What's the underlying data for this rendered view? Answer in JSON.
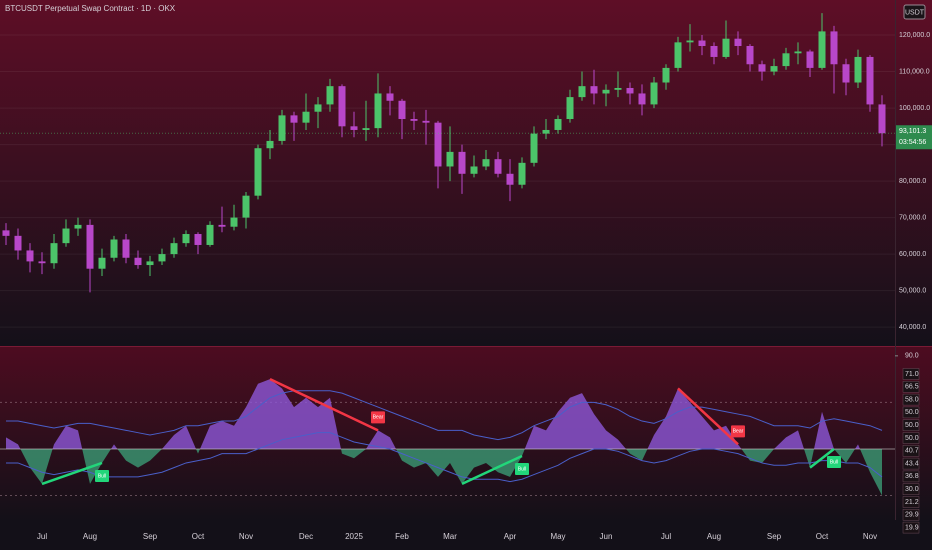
{
  "header": {
    "symbol": "BTCUSDT Perpetual Swap Contract · 1D · OKX",
    "currency": "USDT"
  },
  "chart_data": [
    {
      "type": "candlestick",
      "categories": [
        null,
        null,
        null,
        "Jul",
        null,
        null,
        null,
        "Aug",
        null,
        null,
        null,
        null,
        "Sep",
        null,
        null,
        null,
        "Oct",
        null,
        null,
        null,
        "Nov",
        null,
        null,
        null,
        null,
        "Dec",
        null,
        null,
        null,
        "2025",
        null,
        null,
        null,
        "Feb",
        null,
        null,
        null,
        "Mar",
        null,
        null,
        null,
        null,
        "Apr",
        null,
        null,
        null,
        "May",
        null,
        null,
        null,
        "Jun",
        null,
        null,
        null,
        null,
        "Jul",
        null,
        null,
        null,
        "Aug",
        null,
        null,
        null,
        null,
        "Sep",
        null,
        null,
        null,
        "Oct",
        null,
        null,
        null,
        "Nov",
        null
      ],
      "open": [
        66500,
        65000,
        61000,
        58000,
        57500,
        63000,
        67000,
        68000,
        56000,
        59000,
        64000,
        59000,
        57000,
        58000,
        60000,
        63000,
        65500,
        62500,
        68000,
        67500,
        70000,
        76000,
        89000,
        91000,
        98000,
        96000,
        99000,
        101000,
        106000,
        95000,
        94000,
        94500,
        104000,
        102000,
        97000,
        96500,
        96000,
        84000,
        88000,
        82000,
        84000,
        86000,
        82000,
        79000,
        85000,
        93000,
        94000,
        97000,
        103000,
        106000,
        104000,
        105000,
        105500,
        104000,
        101000,
        107000,
        111000,
        118000,
        118500,
        117000,
        114000,
        119000,
        117000,
        112000,
        110000,
        111500,
        115000,
        115500,
        111000,
        121000,
        112000,
        107000,
        114000,
        101000
      ],
      "high": [
        68500,
        67000,
        63000,
        60500,
        65500,
        69500,
        70000,
        69500,
        61500,
        65000,
        65500,
        61000,
        59500,
        61500,
        64500,
        66500,
        66000,
        69000,
        73000,
        73500,
        77000,
        90000,
        94000,
        99500,
        99000,
        104000,
        103000,
        108000,
        106500,
        99000,
        102000,
        109500,
        106000,
        102500,
        99000,
        99500,
        96500,
        95000,
        90000,
        87000,
        88500,
        88000,
        86000,
        86500,
        95000,
        97000,
        98000,
        105000,
        110000,
        110500,
        106500,
        110000,
        107000,
        106500,
        108500,
        112000,
        119500,
        123000,
        120000,
        118000,
        124000,
        121000,
        117500,
        113000,
        113500,
        116500,
        118000,
        116000,
        126000,
        122500,
        113500,
        116000,
        114500,
        103500
      ],
      "low": [
        62500,
        58500,
        55000,
        54500,
        56000,
        62000,
        65000,
        49500,
        54000,
        58000,
        57500,
        56000,
        54000,
        57000,
        59000,
        62000,
        60000,
        62000,
        66000,
        66500,
        67000,
        75000,
        86000,
        90000,
        91000,
        94000,
        94500,
        99000,
        92000,
        92000,
        91000,
        92000,
        98000,
        91500,
        94000,
        90000,
        78000,
        80000,
        76500,
        81000,
        83000,
        81000,
        74500,
        78000,
        84000,
        91500,
        93000,
        96000,
        102000,
        101000,
        100500,
        103000,
        101000,
        98000,
        100000,
        105000,
        110000,
        115500,
        114500,
        112000,
        113500,
        114500,
        110000,
        107500,
        109000,
        110500,
        112000,
        108500,
        110500,
        104000,
        103500,
        105500,
        99000,
        89500
      ],
      "close": [
        65000,
        61000,
        58000,
        57500,
        63000,
        67000,
        68000,
        56000,
        59000,
        64000,
        59000,
        57000,
        58000,
        60000,
        63000,
        65500,
        62500,
        68000,
        67500,
        70000,
        76000,
        89000,
        91000,
        98000,
        96000,
        99000,
        101000,
        106000,
        95000,
        94000,
        94500,
        104000,
        102000,
        97000,
        96500,
        96000,
        84000,
        88000,
        82000,
        84000,
        86000,
        82000,
        79000,
        85000,
        93000,
        94000,
        97000,
        103000,
        106000,
        104000,
        105000,
        105500,
        104000,
        101000,
        107000,
        111000,
        118000,
        118500,
        117000,
        114000,
        119000,
        117000,
        112000,
        110000,
        111500,
        115000,
        115500,
        111000,
        121000,
        112000,
        107000,
        114000,
        101000,
        93101.3
      ],
      "last_label": "93,101.3",
      "countdown": "03:54:56",
      "up_color": "#4cc46a",
      "down_color": "#b847c9",
      "ylim": [
        35100,
        129600
      ],
      "yticks": [
        {
          "value": 40000,
          "label": "40,000.0"
        },
        {
          "value": 50000,
          "label": "50,000.0"
        },
        {
          "value": 60000,
          "label": "60,000.0"
        },
        {
          "value": 70000,
          "label": "70,000.0"
        },
        {
          "value": 80000,
          "label": "80,000.0"
        },
        {
          "value": 90000,
          "label": "90,000.0"
        },
        {
          "value": 100000,
          "label": "100,000.0"
        },
        {
          "value": 110000,
          "label": "110,000.0"
        },
        {
          "value": 120000,
          "label": "120,000.0"
        }
      ],
      "grid": true
    },
    {
      "type": "oscillator",
      "values": [
        55,
        52,
        42,
        35,
        52,
        60,
        58,
        35,
        44,
        52,
        45,
        42,
        45,
        50,
        56,
        60,
        48,
        60,
        62,
        60,
        68,
        78,
        80,
        76,
        68,
        72,
        68,
        72,
        48,
        46,
        50,
        58,
        55,
        45,
        42,
        44,
        38,
        44,
        35,
        42,
        44,
        40,
        38,
        47,
        60,
        58,
        66,
        72,
        74,
        65,
        58,
        54,
        48,
        45,
        56,
        64,
        76,
        70,
        64,
        58,
        60,
        52,
        45,
        44,
        50,
        55,
        58,
        42,
        66,
        50,
        44,
        52,
        40,
        30
      ],
      "upper": [
        62,
        62,
        61,
        60,
        59,
        60,
        61,
        61,
        60,
        59,
        58,
        57,
        56,
        57,
        58,
        60,
        60,
        61,
        62,
        62,
        64,
        68,
        72,
        74,
        75,
        75,
        75,
        75,
        74,
        72,
        70,
        68,
        66,
        64,
        62,
        60,
        58,
        58,
        58,
        56,
        55,
        54,
        55,
        57,
        60,
        62,
        64,
        68,
        70,
        70,
        69,
        67,
        64,
        62,
        61,
        63,
        66,
        68,
        68,
        67,
        66,
        65,
        64,
        62,
        60,
        60,
        60,
        59,
        62,
        63,
        62,
        61,
        60,
        58
      ],
      "lower": [
        44,
        44,
        42,
        40,
        39,
        40,
        41,
        40,
        38,
        38,
        38,
        38,
        39,
        40,
        42,
        44,
        45,
        46,
        48,
        48,
        48,
        50,
        52,
        54,
        55,
        56,
        57,
        57,
        55,
        53,
        52,
        51,
        50,
        48,
        46,
        44,
        42,
        40,
        38,
        37,
        37,
        37,
        36,
        37,
        39,
        41,
        43,
        46,
        48,
        50,
        50,
        49,
        47,
        45,
        44,
        45,
        47,
        49,
        50,
        50,
        49,
        48,
        46,
        44,
        43,
        43,
        44,
        44,
        45,
        45,
        44,
        44,
        42,
        38
      ],
      "midline": 50,
      "levels": [
        70,
        30
      ],
      "above_color": "#8d57d8",
      "below_color": "#3b9a74",
      "band_color": "#4a5fc9",
      "ylim": [
        19.5,
        93.8
      ],
      "yticks": [
        {
          "value": 90,
          "label": "90.0"
        }
      ],
      "scale_badges": [
        "71.0",
        "66.5",
        "58.0",
        "50.0",
        "50.0",
        "50.0",
        "40.7",
        "43.4",
        "36.8",
        "30.0",
        "21.2",
        "29.9",
        "19.9"
      ],
      "signals": [
        {
          "label": "Bear",
          "start": 22,
          "end": 31,
          "color": "#f23645"
        },
        {
          "label": "Bear",
          "start": 56,
          "end": 61,
          "color": "#f23645"
        },
        {
          "label": "Bull",
          "start": 3,
          "end": 8,
          "color": "#22d67a"
        },
        {
          "label": "Bull",
          "start": 38,
          "end": 43,
          "color": "#22d67a"
        },
        {
          "label": "Bull",
          "start": 67,
          "end": 69,
          "color": "#22d67a"
        }
      ]
    }
  ]
}
